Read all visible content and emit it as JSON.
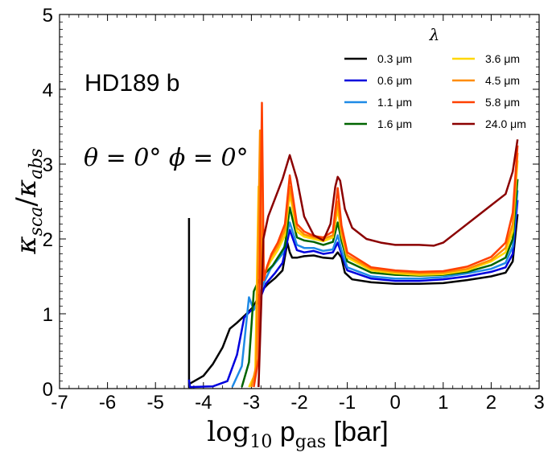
{
  "chart_data": {
    "type": "line",
    "xlabel": "log₁₀ p₆ₐₛ [bar]",
    "xlabel_parts": {
      "main": "log",
      "sub": "10",
      "mid": " p",
      "sub2": "gas",
      "unit": " [bar]"
    },
    "ylabel": "κ_sca/κ_abs",
    "ylabel_parts": {
      "k1": "κ",
      "s1": "sca",
      "slash": "/",
      "k2": "κ",
      "s2": "abs"
    },
    "xlim": [
      -7,
      3
    ],
    "ylim": [
      0,
      5
    ],
    "xticks": [
      "-7",
      "-6",
      "-5",
      "-4",
      "-3",
      "-2",
      "-1",
      "0",
      "1",
      "2",
      "3"
    ],
    "yticks": [
      "0",
      "1",
      "2",
      "3",
      "4",
      "5"
    ],
    "legend": {
      "title": "λ",
      "placement": "top-right",
      "columns": 2
    },
    "annotations": {
      "planet": "HD189 b",
      "angles": "θ = 0°  ϕ = 0°"
    },
    "series": [
      {
        "name": "0.3 μm",
        "color": "#000000",
        "x": [
          -4.3,
          -4.3,
          -4.3,
          -4.0,
          -3.8,
          -3.6,
          -3.45,
          -3.3,
          -3.1,
          -2.95,
          -2.8,
          -2.65,
          -2.5,
          -2.35,
          -2.25,
          -2.2,
          -2.15,
          -2.05,
          -1.9,
          -1.7,
          -1.5,
          -1.3,
          -1.2,
          -1.12,
          -1.05,
          -0.9,
          -0.5,
          0.0,
          0.5,
          1.0,
          1.5,
          2.0,
          2.3,
          2.45,
          2.55
        ],
        "y": [
          2.28,
          0.02,
          0.06,
          0.17,
          0.33,
          0.55,
          0.8,
          0.88,
          1.0,
          1.1,
          1.3,
          1.4,
          1.48,
          1.58,
          1.95,
          1.82,
          1.75,
          1.75,
          1.77,
          1.78,
          1.75,
          1.74,
          1.82,
          1.75,
          1.55,
          1.46,
          1.42,
          1.4,
          1.4,
          1.41,
          1.45,
          1.5,
          1.55,
          1.7,
          2.33
        ]
      },
      {
        "name": "0.6 μm",
        "color": "#0000dd",
        "x": [
          -4.3,
          -4.28,
          -3.8,
          -3.5,
          -3.3,
          -3.15,
          -3.0,
          -2.85,
          -2.7,
          -2.5,
          -2.35,
          -2.2,
          -2.05,
          -1.9,
          -1.7,
          -1.5,
          -1.3,
          -1.2,
          -1.12,
          -1.0,
          -0.5,
          0.0,
          0.5,
          1.0,
          1.5,
          2.0,
          2.3,
          2.45,
          2.55
        ],
        "y": [
          0.12,
          0.02,
          0.03,
          0.1,
          0.45,
          0.95,
          1.05,
          1.15,
          1.4,
          1.55,
          1.68,
          2.12,
          1.85,
          1.82,
          1.84,
          1.8,
          1.82,
          1.95,
          1.8,
          1.58,
          1.47,
          1.44,
          1.44,
          1.46,
          1.5,
          1.56,
          1.62,
          1.8,
          2.52
        ]
      },
      {
        "name": "1.1 μm",
        "color": "#1e8ae6",
        "x": [
          -3.4,
          -3.2,
          -3.05,
          -2.95,
          -2.85,
          -2.75,
          -2.6,
          -2.45,
          -2.35,
          -2.2,
          -2.05,
          -1.9,
          -1.7,
          -1.5,
          -1.3,
          -1.2,
          -1.12,
          -1.0,
          -0.5,
          0.0,
          0.5,
          1.0,
          1.5,
          2.0,
          2.3,
          2.45,
          2.55
        ],
        "y": [
          0.02,
          0.3,
          1.22,
          1.05,
          1.2,
          1.4,
          1.6,
          1.72,
          1.8,
          2.22,
          1.92,
          1.88,
          1.88,
          1.84,
          1.86,
          2.05,
          1.85,
          1.62,
          1.5,
          1.47,
          1.47,
          1.49,
          1.54,
          1.6,
          1.68,
          1.9,
          2.65
        ]
      },
      {
        "name": "1.6 μm",
        "color": "#006400",
        "x": [
          -3.2,
          -3.05,
          -2.95,
          -2.88,
          -2.8,
          -2.7,
          -2.55,
          -2.4,
          -2.3,
          -2.2,
          -2.05,
          -1.9,
          -1.7,
          -1.5,
          -1.3,
          -1.2,
          -1.12,
          -1.0,
          -0.5,
          0.0,
          0.5,
          1.0,
          1.5,
          2.0,
          2.3,
          2.45,
          2.55
        ],
        "y": [
          0.02,
          0.35,
          1.3,
          1.4,
          1.5,
          1.55,
          1.65,
          1.8,
          1.9,
          2.42,
          2.02,
          1.98,
          1.96,
          1.92,
          1.96,
          2.22,
          1.98,
          1.7,
          1.55,
          1.52,
          1.51,
          1.52,
          1.56,
          1.65,
          1.75,
          2.0,
          2.8
        ]
      },
      {
        "name": "3.6 μm",
        "color": "#ffd700",
        "x": [
          -3.05,
          -2.92,
          -2.85,
          -2.8,
          -2.72,
          -2.6,
          -2.45,
          -2.3,
          -2.2,
          -2.05,
          -1.9,
          -1.7,
          -1.5,
          -1.3,
          -1.2,
          -1.12,
          -1.0,
          -0.5,
          0.0,
          0.5,
          1.0,
          1.5,
          2.0,
          2.3,
          2.45,
          2.55
        ],
        "y": [
          0.02,
          0.2,
          2.7,
          1.4,
          1.55,
          1.7,
          1.85,
          2.05,
          2.6,
          2.1,
          2.03,
          2.0,
          1.97,
          2.02,
          2.4,
          2.05,
          1.75,
          1.58,
          1.54,
          1.52,
          1.53,
          1.58,
          1.7,
          1.82,
          2.1,
          3.05
        ]
      },
      {
        "name": "4.5 μm",
        "color": "#ff8c00",
        "x": [
          -3.0,
          -2.9,
          -2.82,
          -2.78,
          -2.7,
          -2.6,
          -2.45,
          -2.3,
          -2.2,
          -2.05,
          -1.9,
          -1.7,
          -1.5,
          -1.3,
          -1.2,
          -1.12,
          -1.0,
          -0.5,
          0.0,
          0.5,
          1.0,
          1.5,
          2.0,
          2.3,
          2.45,
          2.55
        ],
        "y": [
          0.02,
          0.3,
          3.45,
          1.42,
          1.58,
          1.75,
          1.9,
          2.12,
          2.7,
          2.15,
          2.06,
          2.02,
          2.0,
          2.05,
          2.5,
          2.1,
          1.78,
          1.6,
          1.56,
          1.54,
          1.55,
          1.6,
          1.72,
          1.88,
          2.2,
          3.15
        ]
      },
      {
        "name": "5.8 μm",
        "color": "#ff4000",
        "x": [
          -2.95,
          -2.85,
          -2.78,
          -2.74,
          -2.68,
          -2.58,
          -2.45,
          -2.3,
          -2.2,
          -2.05,
          -1.9,
          -1.7,
          -1.5,
          -1.3,
          -1.2,
          -1.12,
          -1.0,
          -0.5,
          0.0,
          0.5,
          1.0,
          1.5,
          2.0,
          2.3,
          2.45,
          2.55
        ],
        "y": [
          0.02,
          0.4,
          3.82,
          1.45,
          1.62,
          1.8,
          1.95,
          2.2,
          2.85,
          2.2,
          2.1,
          2.04,
          2.02,
          2.1,
          2.68,
          2.18,
          1.82,
          1.62,
          1.58,
          1.56,
          1.57,
          1.63,
          1.76,
          1.95,
          2.35,
          3.25
        ]
      },
      {
        "name": "24.0 μm",
        "color": "#8b0000",
        "x": [
          -2.85,
          -2.75,
          -2.65,
          -2.5,
          -2.35,
          -2.2,
          -2.05,
          -1.9,
          -1.7,
          -1.5,
          -1.35,
          -1.25,
          -1.2,
          -1.15,
          -1.05,
          -0.9,
          -0.6,
          -0.3,
          0.0,
          0.5,
          0.8,
          1.0,
          1.3,
          1.7,
          2.0,
          2.3,
          2.45,
          2.55
        ],
        "y": [
          0.02,
          2.0,
          2.3,
          2.55,
          2.8,
          3.12,
          2.8,
          2.3,
          2.05,
          1.98,
          2.2,
          2.7,
          2.83,
          2.78,
          2.4,
          2.15,
          2.0,
          1.95,
          1.92,
          1.92,
          1.91,
          1.95,
          2.1,
          2.3,
          2.45,
          2.6,
          2.9,
          3.33
        ]
      }
    ]
  }
}
